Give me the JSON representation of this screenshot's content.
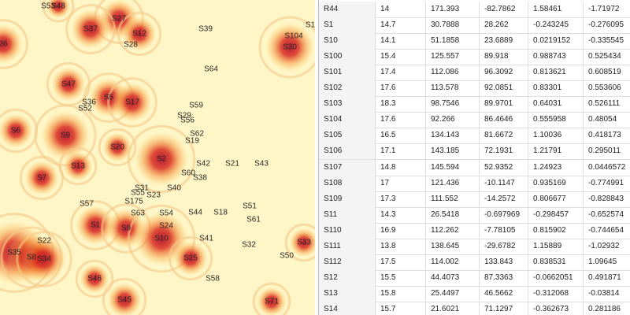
{
  "heatmap": {
    "labels": [
      "S53",
      "S48",
      "S27",
      "S37",
      "S12",
      "S28",
      "S39",
      "S104",
      "S30",
      "S1",
      "26",
      "S64",
      "S47",
      "S36",
      "S52",
      "S5",
      "S17",
      "S59",
      "S29",
      "S56",
      "S6",
      "S9",
      "S62",
      "S19",
      "S20",
      "S2",
      "S13",
      "S42",
      "S21",
      "S43",
      "S7",
      "S60",
      "S38",
      "S40",
      "S31",
      "S55",
      "S23",
      "S57",
      "S175",
      "S51",
      "S63",
      "S54",
      "S44",
      "S18",
      "S61",
      "S1",
      "S9",
      "S24",
      "S22",
      "S41",
      "S10",
      "S32",
      "S33",
      "S35",
      "S8",
      "S34",
      "S25",
      "S50",
      "S46",
      "S58",
      "S45",
      "S71"
    ]
  },
  "table": {
    "rows": [
      [
        "R44",
        "14",
        "171.393",
        "-82.7862",
        "1.58461",
        "-1.71972"
      ],
      [
        "S1",
        "14.7",
        "30.7888",
        "28.262",
        "-0.243245",
        "-0.276095"
      ],
      [
        "S10",
        "14.1",
        "51.1858",
        "23.6889",
        "0.0219152",
        "-0.335545"
      ],
      [
        "S100",
        "15.4",
        "125.557",
        "89.918",
        "0.988743",
        "0.525434"
      ],
      [
        "S101",
        "17.4",
        "112.086",
        "96.3092",
        "0.813621",
        "0.608519"
      ],
      [
        "S102",
        "17.6",
        "113.578",
        "92.0851",
        "0.83301",
        "0.553606"
      ],
      [
        "S103",
        "18.3",
        "98.7546",
        "89.9701",
        "0.64031",
        "0.526111"
      ],
      [
        "S104",
        "17.6",
        "92.266",
        "86.4646",
        "0.555958",
        "0.48054"
      ],
      [
        "S105",
        "16.5",
        "134.143",
        "81.6672",
        "1.10036",
        "0.418173"
      ],
      [
        "S106",
        "17.1",
        "143.185",
        "72.1931",
        "1.21791",
        "0.295011"
      ],
      [
        "S107",
        "14.8",
        "145.594",
        "52.9352",
        "1.24923",
        "0.0446572"
      ],
      [
        "S108",
        "17",
        "121.436",
        "-10.1147",
        "0.935169",
        "-0.774991"
      ],
      [
        "S109",
        "17.3",
        "111.552",
        "-14.2572",
        "0.806677",
        "-0.828843"
      ],
      [
        "S11",
        "14.3",
        "26.5418",
        "-0.697969",
        "-0.298457",
        "-0.652574"
      ],
      [
        "S110",
        "16.9",
        "112.262",
        "-7.78105",
        "0.815902",
        "-0.744654"
      ],
      [
        "S111",
        "13.8",
        "138.645",
        "-29.6782",
        "1.15889",
        "-1.02932"
      ],
      [
        "S112",
        "17.5",
        "114.002",
        "133.843",
        "0.838531",
        "1.09645"
      ],
      [
        "S12",
        "15.5",
        "44.4073",
        "87.3363",
        "-0.0662051",
        "0.491871"
      ],
      [
        "S13",
        "15.8",
        "25.4497",
        "46.5662",
        "-0.312068",
        "-0.03814"
      ],
      [
        "S14",
        "15.7",
        "21.6021",
        "71.1297",
        "-0.362673",
        "0.281186"
      ]
    ]
  }
}
